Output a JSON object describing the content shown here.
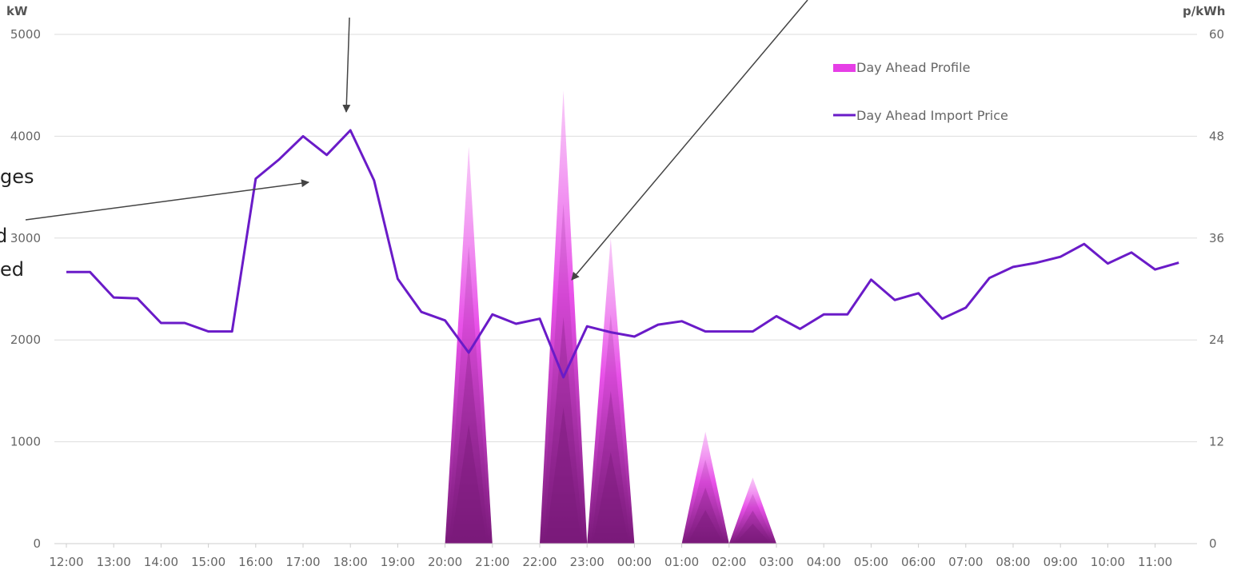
{
  "colors": {
    "price_line": "#6a1bc8",
    "profile": "#e63ee6",
    "profile_dark": "#7a1a7a",
    "grid": "#dddddd",
    "tick_text": "#666666",
    "arrow": "#555555"
  },
  "annotations": [
    "ges",
    "d",
    "ed"
  ],
  "chart_data": {
    "type": "area",
    "x": [
      "12:00",
      "12:30",
      "13:00",
      "13:30",
      "14:00",
      "14:30",
      "15:00",
      "15:30",
      "16:00",
      "16:30",
      "17:00",
      "17:30",
      "18:00",
      "18:30",
      "19:00",
      "19:30",
      "20:00",
      "20:30",
      "21:00",
      "21:30",
      "22:00",
      "22:30",
      "23:00",
      "23:30",
      "00:00",
      "00:30",
      "01:00",
      "01:30",
      "02:00",
      "02:30",
      "03:00",
      "03:30",
      "04:00",
      "04:30",
      "05:00",
      "05:30",
      "06:00",
      "06:30",
      "07:00",
      "07:30",
      "08:00",
      "08:30",
      "09:00",
      "09:30",
      "10:00",
      "10:30",
      "11:00",
      "11:30"
    ],
    "x_tick_labels": [
      "12:00",
      "13:00",
      "14:00",
      "15:00",
      "16:00",
      "17:00",
      "18:00",
      "19:00",
      "20:00",
      "21:00",
      "22:00",
      "23:00",
      "00:00",
      "01:00",
      "02:00",
      "03:00",
      "04:00",
      "05:00",
      "06:00",
      "07:00",
      "08:00",
      "09:00",
      "10:00",
      "11:00"
    ],
    "y_left": {
      "label": "kW",
      "min": 0,
      "max": 5000,
      "ticks": [
        0,
        1000,
        2000,
        3000,
        4000,
        5000
      ]
    },
    "y_right": {
      "label": "p/kWh",
      "min": 0,
      "max": 60,
      "ticks": [
        0,
        12,
        24,
        36,
        48,
        60
      ]
    },
    "grid": true,
    "legend_position": "top-right",
    "series": [
      {
        "name": "Day Ahead Profile",
        "type": "area",
        "axis": "left",
        "values": [
          0,
          0,
          0,
          0,
          0,
          0,
          0,
          0,
          0,
          0,
          0,
          0,
          0,
          0,
          0,
          0,
          0,
          3900,
          0,
          0,
          0,
          4450,
          0,
          3000,
          0,
          0,
          0,
          1100,
          0,
          650,
          0,
          0,
          0,
          0,
          0,
          0,
          0,
          0,
          0,
          0,
          0,
          0,
          0,
          0,
          0,
          0,
          0,
          0
        ]
      },
      {
        "name": "Day Ahead Import Price",
        "type": "line",
        "axis": "right",
        "values": [
          32.0,
          32.0,
          29.0,
          28.9,
          26.0,
          26.0,
          25.0,
          25.0,
          43.0,
          45.3,
          48.0,
          45.8,
          48.7,
          42.8,
          31.2,
          27.3,
          26.3,
          22.5,
          27.0,
          25.9,
          26.5,
          19.6,
          25.6,
          24.9,
          24.4,
          25.8,
          26.2,
          25.0,
          25.0,
          25.0,
          26.8,
          25.3,
          27.0,
          27.0,
          31.1,
          28.7,
          29.5,
          26.5,
          27.8,
          31.3,
          32.6,
          33.1,
          33.8,
          35.3,
          33.0,
          34.3,
          32.3,
          33.1
        ]
      }
    ]
  }
}
